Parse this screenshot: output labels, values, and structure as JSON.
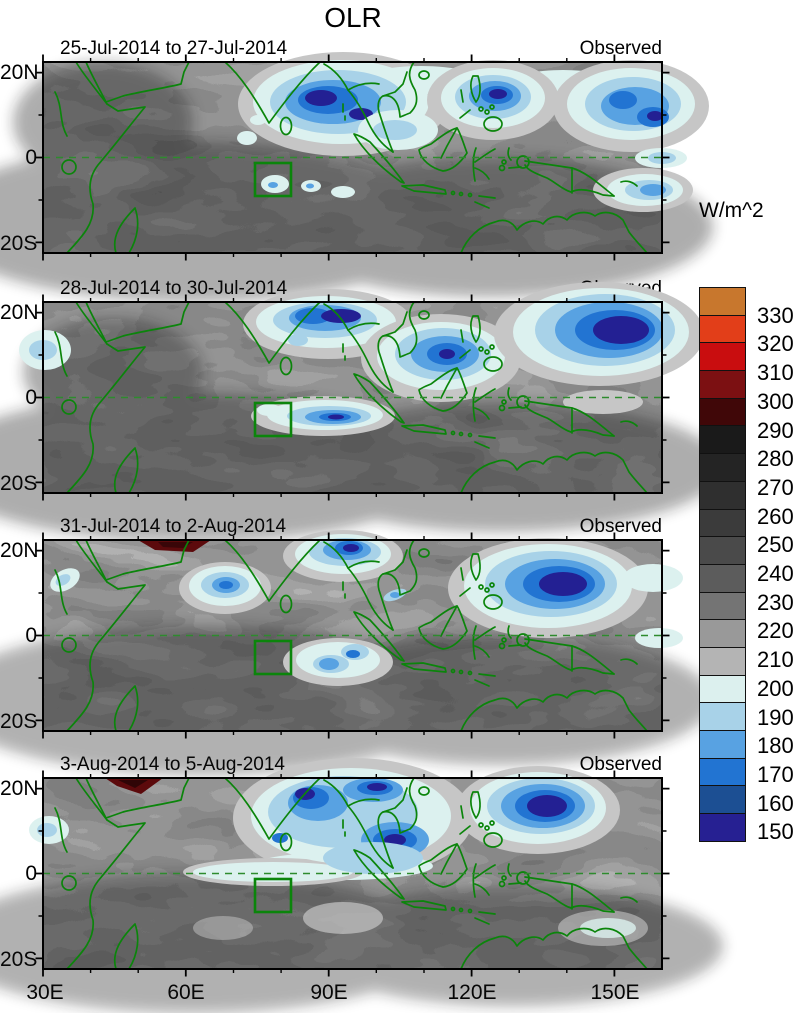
{
  "title": "OLR",
  "units_label": "W/m^2",
  "panels": [
    {
      "date_range": "25-Jul-2014 to 27-Jul-2014",
      "source": "Observed"
    },
    {
      "date_range": "28-Jul-2014 to 30-Jul-2014",
      "source": "Observed"
    },
    {
      "date_range": "31-Jul-2014 to 2-Aug-2014",
      "source": "Observed"
    },
    {
      "date_range": "3-Aug-2014 to 5-Aug-2014",
      "source": "Observed"
    }
  ],
  "axes": {
    "lat_ticks": [
      "20N",
      "0",
      "20S"
    ],
    "lon_ticks": [
      "30E",
      "60E",
      "90E",
      "120E",
      "150E"
    ]
  },
  "colorbar": {
    "levels": [
      330,
      320,
      310,
      300,
      290,
      280,
      270,
      260,
      250,
      240,
      230,
      220,
      210,
      200,
      190,
      180,
      170,
      160,
      150
    ],
    "colors": [
      "#c8772d",
      "#e23e19",
      "#c90d0f",
      "#7c1012",
      "#400708",
      "#1a1a1a",
      "#242424",
      "#2f2f2f",
      "#3b3b3b",
      "#4a4a4a",
      "#5c5c5c",
      "#747474",
      "#999999",
      "#b4b4b4",
      "#dcf0ee",
      "#a8d2e8",
      "#58a2e2",
      "#2274d2",
      "#1c4f93",
      "#262092"
    ]
  },
  "map_colors": {
    "coastline_green": "#0b850b",
    "equator_dash_green": "#2e8b2e",
    "region_box_green": "#0b850b",
    "low_olr_navy": "#232093",
    "high_olr_dark_red": "#5c0a0c"
  },
  "chart_data": {
    "type": "heatmap",
    "title": "OLR",
    "units": "W/m^2",
    "contour_interval": 10,
    "contour_level_min": 150,
    "contour_level_max": 330,
    "legend_position": "right",
    "map_extent": {
      "lon_min": 30,
      "lon_max": 160,
      "lat_min": -22.5,
      "lat_max": 22.5
    },
    "lon_ticks_deg": [
      30,
      60,
      90,
      120,
      150
    ],
    "lat_ticks_deg": [
      20,
      0,
      -20
    ],
    "region_box": {
      "lon_min": 74.5,
      "lon_max": 82,
      "lat_min": -9,
      "lat_max": -1
    },
    "panels": [
      {
        "date_range": "25-Jul-2014 to 27-Jul-2014",
        "source": "Observed",
        "low_olr_centers": [
          {
            "lon": 93,
            "lat": 13,
            "olr": 150
          },
          {
            "lon": 124,
            "lat": 14,
            "olr": 150
          },
          {
            "lon": 153,
            "lat": 13,
            "olr": 150
          },
          {
            "lon": 156,
            "lat": -8,
            "olr": 180
          },
          {
            "lon": 79,
            "lat": -6,
            "olr": 190
          }
        ]
      },
      {
        "date_range": "28-Jul-2014 to 30-Jul-2014",
        "source": "Observed",
        "low_olr_centers": [
          {
            "lon": 89,
            "lat": 18,
            "olr": 150
          },
          {
            "lon": 114,
            "lat": 10,
            "olr": 150
          },
          {
            "lon": 147,
            "lat": 15,
            "olr": 150
          },
          {
            "lon": 89,
            "lat": -4,
            "olr": 150
          }
        ]
      },
      {
        "date_range": "31-Jul-2014 to 2-Aug-2014",
        "source": "Observed",
        "low_olr_centers": [
          {
            "lon": 68,
            "lat": 12,
            "olr": 160
          },
          {
            "lon": 93,
            "lat": 19,
            "olr": 150
          },
          {
            "lon": 136,
            "lat": 12,
            "olr": 150
          },
          {
            "lon": 92,
            "lat": -6,
            "olr": 170
          }
        ],
        "high_olr_centers": [
          {
            "lon": 58,
            "lat": 22,
            "olr": 300
          }
        ]
      },
      {
        "date_range": "3-Aug-2014 to 5-Aug-2014",
        "source": "Observed",
        "low_olr_centers": [
          {
            "lon": 86,
            "lat": 18,
            "olr": 150
          },
          {
            "lon": 100,
            "lat": 20,
            "olr": 150
          },
          {
            "lon": 104,
            "lat": 8,
            "olr": 150
          },
          {
            "lon": 135,
            "lat": 16,
            "olr": 150
          }
        ],
        "high_olr_centers": [
          {
            "lon": 49,
            "lat": 22,
            "olr": 300
          }
        ]
      }
    ]
  }
}
